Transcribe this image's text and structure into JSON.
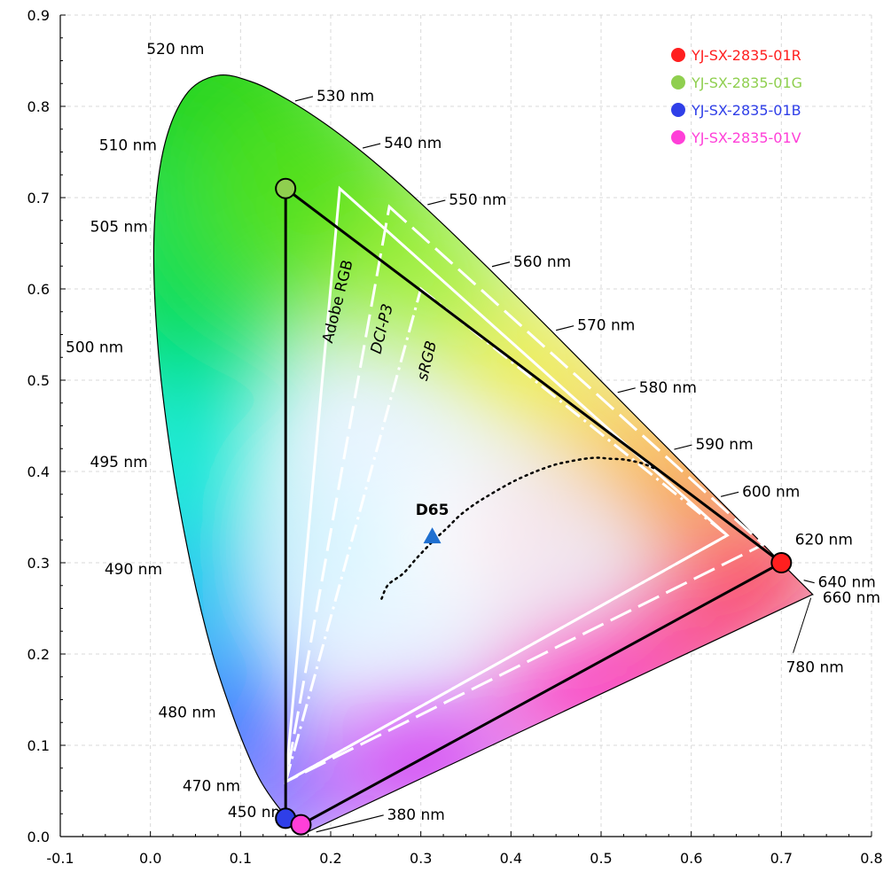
{
  "chart_data": {
    "type": "scatter",
    "subtype": "CIE 1931 chromaticity diagram",
    "title": "",
    "xlabel": "",
    "ylabel": "",
    "xlim": [
      -0.1,
      0.8
    ],
    "ylim": [
      0.0,
      0.9
    ],
    "x_ticks": [
      -0.1,
      0.0,
      0.1,
      0.2,
      0.3,
      0.4,
      0.5,
      0.6,
      0.7,
      0.8
    ],
    "y_ticks": [
      0.0,
      0.1,
      0.2,
      0.3,
      0.4,
      0.5,
      0.6,
      0.7,
      0.8,
      0.9
    ],
    "x_tick_labels": [
      "-0.1",
      "0.0",
      "0.1",
      "0.2",
      "0.3",
      "0.4",
      "0.5",
      "0.6",
      "0.7",
      "0.8"
    ],
    "y_tick_labels": [
      "0.0",
      "0.1",
      "0.2",
      "0.3",
      "0.4",
      "0.5",
      "0.6",
      "0.7",
      "0.8",
      "0.9"
    ],
    "grid": true,
    "legend_position": "top-right",
    "legend": [
      {
        "name": "YJ-SX-2835-01R",
        "color": "#ff1f1f"
      },
      {
        "name": "YJ-SX-2835-01G",
        "color": "#8fcf4f"
      },
      {
        "name": "YJ-SX-2835-01B",
        "color": "#2f3fe8"
      },
      {
        "name": "YJ-SX-2835-01V",
        "color": "#ff3fd8"
      }
    ],
    "series": [
      {
        "name": "YJ-SX-2835-01R",
        "x": 0.7,
        "y": 0.3,
        "color": "#ff1f1f"
      },
      {
        "name": "YJ-SX-2835-01G",
        "x": 0.15,
        "y": 0.71,
        "color": "#8fcf4f"
      },
      {
        "name": "YJ-SX-2835-01B",
        "x": 0.15,
        "y": 0.02,
        "color": "#2f3fe8"
      },
      {
        "name": "YJ-SX-2835-01V",
        "x": 0.167,
        "y": 0.013,
        "color": "#ff3fd8"
      }
    ],
    "spectral_locus": [
      {
        "nm": 380,
        "x": 0.1741,
        "y": 0.005
      },
      {
        "nm": 450,
        "x": 0.1566,
        "y": 0.0177
      },
      {
        "nm": 460,
        "x": 0.144,
        "y": 0.0297
      },
      {
        "nm": 470,
        "x": 0.1241,
        "y": 0.0578
      },
      {
        "nm": 475,
        "x": 0.1096,
        "y": 0.0868
      },
      {
        "nm": 480,
        "x": 0.0913,
        "y": 0.1327
      },
      {
        "nm": 485,
        "x": 0.0687,
        "y": 0.2007
      },
      {
        "nm": 490,
        "x": 0.0454,
        "y": 0.295
      },
      {
        "nm": 495,
        "x": 0.0235,
        "y": 0.4127
      },
      {
        "nm": 500,
        "x": 0.0082,
        "y": 0.5384
      },
      {
        "nm": 505,
        "x": 0.0039,
        "y": 0.6548
      },
      {
        "nm": 510,
        "x": 0.0139,
        "y": 0.7502
      },
      {
        "nm": 515,
        "x": 0.0389,
        "y": 0.812
      },
      {
        "nm": 520,
        "x": 0.0743,
        "y": 0.8338
      },
      {
        "nm": 525,
        "x": 0.1142,
        "y": 0.8262
      },
      {
        "nm": 530,
        "x": 0.1547,
        "y": 0.8059
      },
      {
        "nm": 535,
        "x": 0.1929,
        "y": 0.7816
      },
      {
        "nm": 540,
        "x": 0.2296,
        "y": 0.7543
      },
      {
        "nm": 545,
        "x": 0.2658,
        "y": 0.7243
      },
      {
        "nm": 550,
        "x": 0.3016,
        "y": 0.6923
      },
      {
        "nm": 555,
        "x": 0.3373,
        "y": 0.6589
      },
      {
        "nm": 560,
        "x": 0.3731,
        "y": 0.6245
      },
      {
        "nm": 565,
        "x": 0.4087,
        "y": 0.5896
      },
      {
        "nm": 570,
        "x": 0.4441,
        "y": 0.5547
      },
      {
        "nm": 575,
        "x": 0.4788,
        "y": 0.5202
      },
      {
        "nm": 580,
        "x": 0.5125,
        "y": 0.4866
      },
      {
        "nm": 585,
        "x": 0.5448,
        "y": 0.4544
      },
      {
        "nm": 590,
        "x": 0.5752,
        "y": 0.4242
      },
      {
        "nm": 595,
        "x": 0.6029,
        "y": 0.3965
      },
      {
        "nm": 600,
        "x": 0.627,
        "y": 0.3725
      },
      {
        "nm": 610,
        "x": 0.6658,
        "y": 0.334
      },
      {
        "nm": 620,
        "x": 0.6915,
        "y": 0.3083
      },
      {
        "nm": 640,
        "x": 0.719,
        "y": 0.2809
      },
      {
        "nm": 660,
        "x": 0.73,
        "y": 0.27
      },
      {
        "nm": 700,
        "x": 0.7347,
        "y": 0.2653
      },
      {
        "nm": 780,
        "x": 0.7347,
        "y": 0.2653
      }
    ],
    "wavelength_labels": [
      {
        "text": "380 nm",
        "x": 0.1741,
        "y": 0.005
      },
      {
        "text": "450 nm",
        "x": 0.1566,
        "y": 0.0177
      },
      {
        "text": "470 nm",
        "x": 0.1241,
        "y": 0.0578
      },
      {
        "text": "480 nm",
        "x": 0.0913,
        "y": 0.1327
      },
      {
        "text": "490 nm",
        "x": 0.0454,
        "y": 0.295
      },
      {
        "text": "495 nm",
        "x": 0.0235,
        "y": 0.4127
      },
      {
        "text": "500 nm",
        "x": 0.0082,
        "y": 0.5384
      },
      {
        "text": "505 nm",
        "x": 0.0039,
        "y": 0.6548
      },
      {
        "text": "510 nm",
        "x": 0.0139,
        "y": 0.7502
      },
      {
        "text": "520 nm",
        "x": 0.0743,
        "y": 0.8338
      },
      {
        "text": "530 nm",
        "x": 0.1547,
        "y": 0.8059
      },
      {
        "text": "540 nm",
        "x": 0.2296,
        "y": 0.7543
      },
      {
        "text": "550 nm",
        "x": 0.3016,
        "y": 0.6923
      },
      {
        "text": "560 nm",
        "x": 0.3731,
        "y": 0.6245
      },
      {
        "text": "570 nm",
        "x": 0.4441,
        "y": 0.5547
      },
      {
        "text": "580 nm",
        "x": 0.5125,
        "y": 0.4866
      },
      {
        "text": "590 nm",
        "x": 0.5752,
        "y": 0.4242
      },
      {
        "text": "600 nm",
        "x": 0.627,
        "y": 0.3725
      },
      {
        "text": "620 nm",
        "x": 0.6915,
        "y": 0.3083
      },
      {
        "text": "640 nm",
        "x": 0.719,
        "y": 0.2809
      },
      {
        "text": "660 nm",
        "x": 0.73,
        "y": 0.27
      },
      {
        "text": "780 nm",
        "x": 0.7347,
        "y": 0.2653
      }
    ],
    "gamuts": [
      {
        "name": "Adobe RGB",
        "style": "solid",
        "points": [
          [
            0.21,
            0.71
          ],
          [
            0.64,
            0.33
          ],
          [
            0.15,
            0.06
          ]
        ]
      },
      {
        "name": "DCI-P3",
        "style": "dashed",
        "points": [
          [
            0.265,
            0.69
          ],
          [
            0.68,
            0.32
          ],
          [
            0.15,
            0.06
          ]
        ]
      },
      {
        "name": "sRGB",
        "style": "dash-dot",
        "points": [
          [
            0.3,
            0.6
          ],
          [
            0.64,
            0.33
          ],
          [
            0.15,
            0.06
          ]
        ]
      }
    ],
    "led_gamut": {
      "points": [
        [
          0.7,
          0.3
        ],
        [
          0.15,
          0.71
        ],
        [
          0.15,
          0.02
        ],
        [
          0.167,
          0.013
        ]
      ]
    },
    "white_point": {
      "label": "D65",
      "x": 0.3127,
      "y": 0.329
    },
    "planckian_locus": [
      [
        0.2565,
        0.2606
      ],
      [
        0.2637,
        0.2758
      ],
      [
        0.2805,
        0.2883
      ],
      [
        0.2952,
        0.3048
      ],
      [
        0.3135,
        0.3237
      ],
      [
        0.329,
        0.338
      ],
      [
        0.3435,
        0.352
      ],
      [
        0.361,
        0.365
      ],
      [
        0.3805,
        0.3768
      ],
      [
        0.402,
        0.3887
      ],
      [
        0.425,
        0.399
      ],
      [
        0.4475,
        0.407
      ],
      [
        0.465,
        0.411
      ],
      [
        0.4825,
        0.414
      ],
      [
        0.496,
        0.415
      ],
      [
        0.509,
        0.414
      ],
      [
        0.526,
        0.413
      ],
      [
        0.545,
        0.409
      ],
      [
        0.56,
        0.403
      ]
    ]
  }
}
